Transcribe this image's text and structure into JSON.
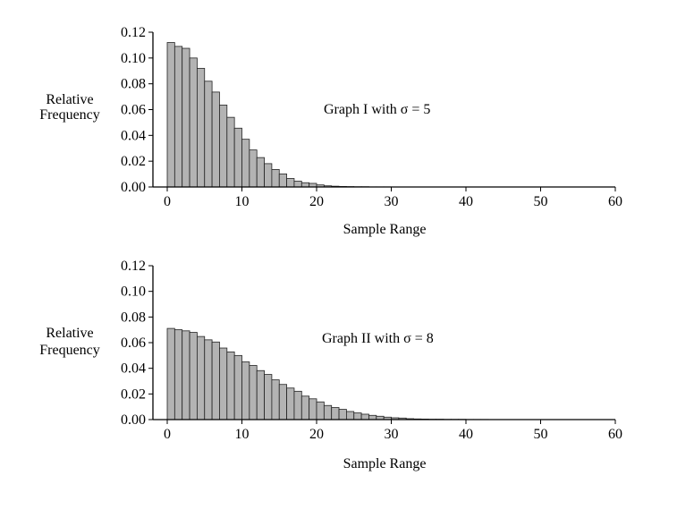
{
  "chart_data": [
    {
      "type": "bar",
      "title": "Graph I with σ = 5",
      "xlabel": "Sample Range",
      "ylabel": [
        "Relative",
        "Frequency"
      ],
      "xlim": [
        0,
        60
      ],
      "ylim": [
        0,
        0.12
      ],
      "xticks": [
        "0",
        "10",
        "20",
        "30",
        "40",
        "50",
        "60"
      ],
      "yticks": [
        "0.00",
        "0.02",
        "0.04",
        "0.06",
        "0.08",
        "0.10",
        "0.12"
      ],
      "grid": false,
      "bar_color": "#b3b3b3",
      "values": [
        0.112,
        0.109,
        0.1075,
        0.1,
        0.092,
        0.082,
        0.0736,
        0.0635,
        0.054,
        0.0456,
        0.037,
        0.0287,
        0.0228,
        0.0181,
        0.0136,
        0.0101,
        0.0066,
        0.0045,
        0.0033,
        0.0028,
        0.0016,
        0.0009,
        0.0006,
        0.0004,
        0.0003,
        0.0002,
        0.0002,
        0.0001,
        0.0001,
        0.0001
      ]
    },
    {
      "type": "bar",
      "title": "Graph II with σ = 8",
      "xlabel": "Sample Range",
      "ylabel": [
        "Relative",
        "Frequency"
      ],
      "xlim": [
        0,
        60
      ],
      "ylim": [
        0,
        0.12
      ],
      "xticks": [
        "0",
        "10",
        "20",
        "30",
        "40",
        "50",
        "60"
      ],
      "yticks": [
        "0.00",
        "0.02",
        "0.04",
        "0.06",
        "0.08",
        "0.10",
        "0.12"
      ],
      "grid": false,
      "bar_color": "#b3b3b3",
      "values": [
        0.0711,
        0.0701,
        0.0692,
        0.068,
        0.0648,
        0.0622,
        0.0605,
        0.0558,
        0.0528,
        0.05,
        0.045,
        0.0422,
        0.0382,
        0.0352,
        0.031,
        0.0274,
        0.0246,
        0.0221,
        0.0183,
        0.0162,
        0.0138,
        0.011,
        0.0094,
        0.008,
        0.0063,
        0.0052,
        0.0042,
        0.0033,
        0.0026,
        0.0019,
        0.0014,
        0.0012,
        0.0007,
        0.0005,
        0.0004,
        0.0003,
        0.0003,
        0.0002,
        0.0002,
        0.0002,
        0.0001,
        0.0001,
        0.0001
      ]
    }
  ]
}
